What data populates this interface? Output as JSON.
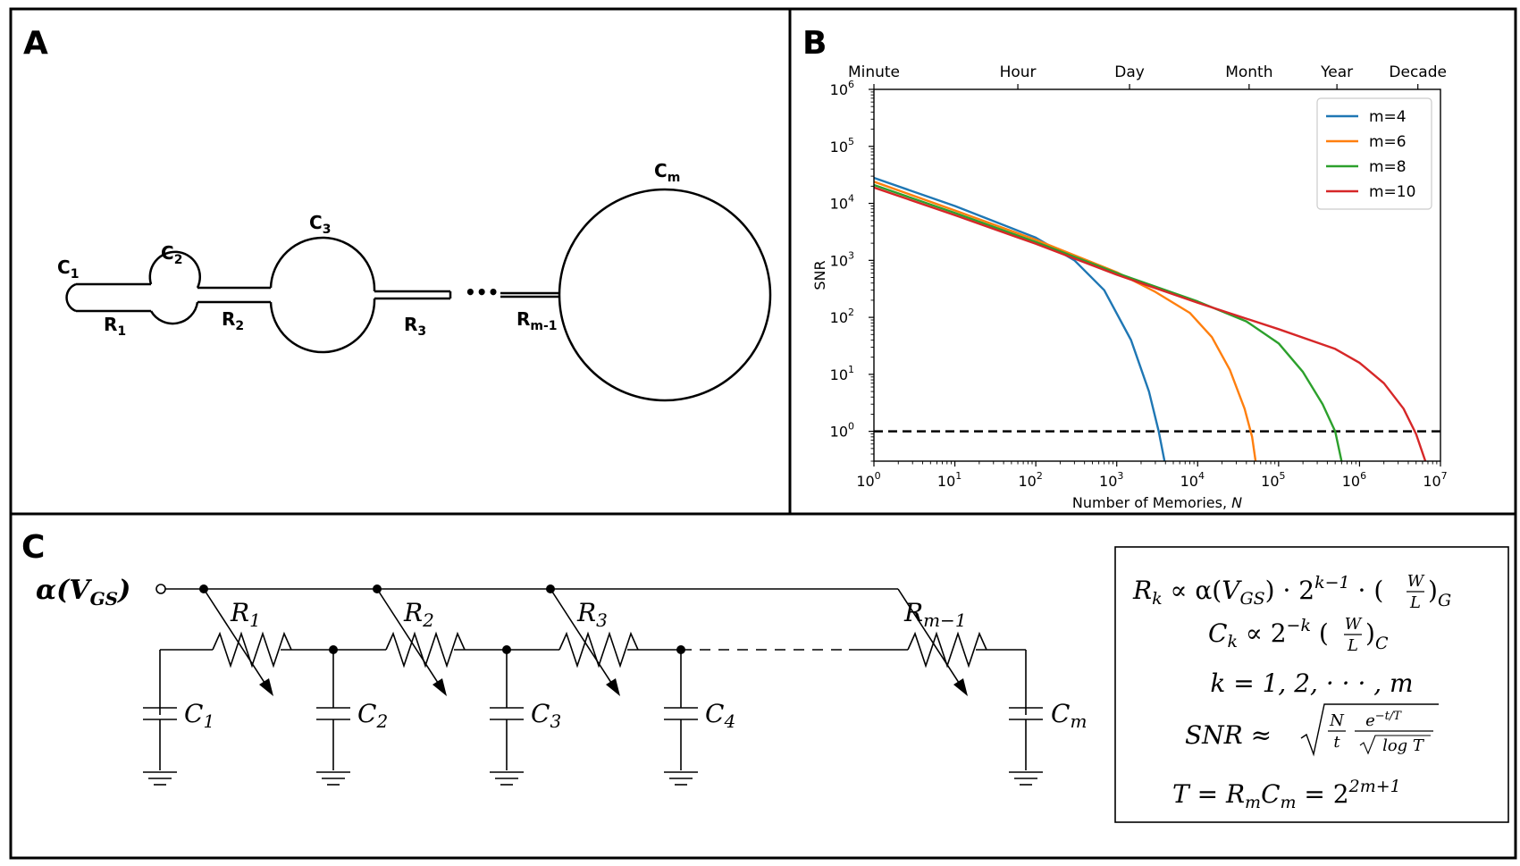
{
  "panels": {
    "a": "A",
    "b": "B",
    "c": "C"
  },
  "panel_a": {
    "c1": "C",
    "c1_sub": "1",
    "c2": "C",
    "c2_sub": "2",
    "c3": "C",
    "c3_sub": "3",
    "cm": "C",
    "cm_sub": "m",
    "r1": "R",
    "r1_sub": "1",
    "r2": "R",
    "r2_sub": "2",
    "r3": "R",
    "r3_sub": "3",
    "rm1": "R",
    "rm1_sub": "m-1",
    "ellipsis": "•••"
  },
  "chart_data": {
    "type": "line",
    "title": "",
    "xlabel": "Number of Memories,",
    "xlabel_var": "N",
    "ylabel": "SNR",
    "xscale": "log",
    "yscale": "log",
    "xlim": [
      1,
      10000000
    ],
    "ylim": [
      0.3,
      1000000
    ],
    "x_ticks": [
      {
        "base": "10",
        "exp": "0",
        "value": 1
      },
      {
        "base": "10",
        "exp": "1",
        "value": 10
      },
      {
        "base": "10",
        "exp": "2",
        "value": 100
      },
      {
        "base": "10",
        "exp": "3",
        "value": 1000
      },
      {
        "base": "10",
        "exp": "4",
        "value": 10000
      },
      {
        "base": "10",
        "exp": "5",
        "value": 100000
      },
      {
        "base": "10",
        "exp": "6",
        "value": 1000000
      },
      {
        "base": "10",
        "exp": "7",
        "value": 10000000
      }
    ],
    "y_ticks": [
      {
        "base": "10",
        "exp": "0",
        "value": 1
      },
      {
        "base": "10",
        "exp": "1",
        "value": 10
      },
      {
        "base": "10",
        "exp": "2",
        "value": 100
      },
      {
        "base": "10",
        "exp": "3",
        "value": 1000
      },
      {
        "base": "10",
        "exp": "4",
        "value": 10000
      },
      {
        "base": "10",
        "exp": "5",
        "value": 100000
      },
      {
        "base": "10",
        "exp": "6",
        "value": 1000000
      }
    ],
    "top_axis": [
      {
        "label": "Minute",
        "value": 1
      },
      {
        "label": "Hour",
        "value": 60
      },
      {
        "label": "Day",
        "value": 1440
      },
      {
        "label": "Month",
        "value": 43200
      },
      {
        "label": "Year",
        "value": 525600
      },
      {
        "label": "Decade",
        "value": 5256000
      }
    ],
    "reference_line": {
      "y": 1,
      "style": "dashed",
      "color": "#000000"
    },
    "legend_position": "top-right",
    "grid": false,
    "series": [
      {
        "name": "m=4",
        "color": "#1f77b4",
        "x": [
          1,
          10,
          100,
          300,
          700,
          1500,
          2500,
          3300,
          3900
        ],
        "y": [
          28000,
          9000,
          2500,
          1000,
          300,
          40,
          5,
          1,
          0.3
        ]
      },
      {
        "name": "m=6",
        "color": "#ff7f0e",
        "x": [
          1,
          10,
          100,
          1000,
          3000,
          8000,
          15000,
          25000,
          38000,
          47000,
          52000
        ],
        "y": [
          24000,
          7500,
          2300,
          620,
          280,
          120,
          45,
          12,
          2.5,
          0.8,
          0.3
        ]
      },
      {
        "name": "m=8",
        "color": "#2ca02c",
        "x": [
          1,
          10,
          100,
          1000,
          10000,
          40000,
          100000,
          200000,
          350000,
          500000,
          600000
        ],
        "y": [
          21000,
          6800,
          2100,
          600,
          190,
          85,
          35,
          11,
          3,
          1,
          0.3
        ]
      },
      {
        "name": "m=10",
        "color": "#d62728",
        "x": [
          1,
          10,
          100,
          1000,
          10000,
          100000,
          500000,
          1000000,
          2000000,
          3500000,
          5000000,
          6500000
        ],
        "y": [
          19000,
          6200,
          1950,
          560,
          180,
          62,
          28,
          16,
          7,
          2.5,
          0.9,
          0.3
        ]
      }
    ]
  },
  "panel_c": {
    "input_label": "α(V",
    "input_sub": "GS",
    "input_close": ")",
    "r_labels": [
      {
        "base": "R",
        "sub": "1"
      },
      {
        "base": "R",
        "sub": "2"
      },
      {
        "base": "R",
        "sub": "3"
      },
      {
        "base": "R",
        "sub": "m−1"
      }
    ],
    "c_labels": [
      {
        "base": "C",
        "sub": "1"
      },
      {
        "base": "C",
        "sub": "2"
      },
      {
        "base": "C",
        "sub": "3"
      },
      {
        "base": "C",
        "sub": "4"
      },
      {
        "base": "C",
        "sub": "m"
      }
    ]
  },
  "equations": {
    "line1_a": "R",
    "line1_a_sub": "k",
    "line1_b": " ∝ α(",
    "line1_c": "V",
    "line1_c_sub": "GS",
    "line1_d": ") · 2",
    "line1_d_sup": "k−1",
    "line1_e": " · (",
    "line1_e_num": "W",
    "line1_e_den": "L",
    "line1_e_close": ")",
    "line1_e_sub": "G",
    "line2_a": "C",
    "line2_a_sub": "k",
    "line2_b": " ∝ 2",
    "line2_b_sup": "−k",
    "line2_c": " (",
    "line2_c_num": "W",
    "line2_c_den": "L",
    "line2_c_close": ")",
    "line2_c_sub": "C",
    "line3": "k = 1, 2, · · · , m",
    "line4_a": "SNR ≈",
    "line4_num1": "N",
    "line4_den1": "t",
    "line4_num2": "e",
    "line4_num2_sup": "−t/T",
    "line4_den2": "log T",
    "line5_a": "T = R",
    "line5_a_sub": "m",
    "line5_b": "C",
    "line5_b_sub": "m",
    "line5_c": " = 2",
    "line5_c_sup": "2m+1"
  }
}
